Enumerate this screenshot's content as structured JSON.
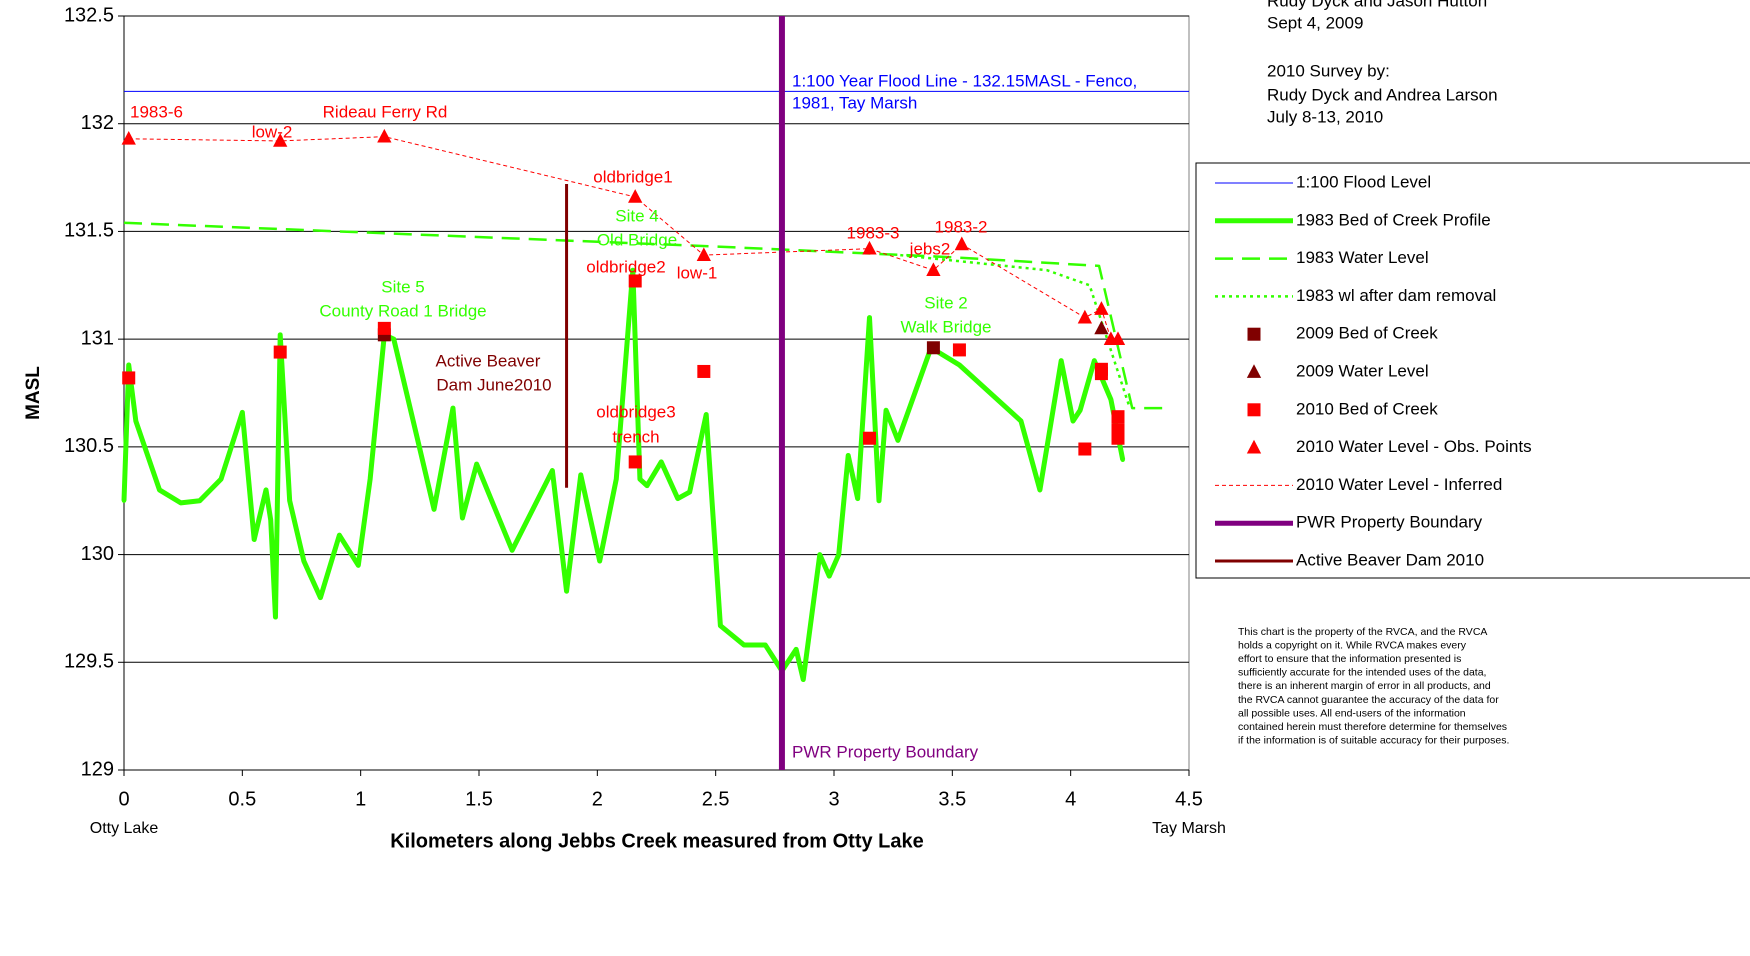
{
  "chart_data": {
    "type": "line",
    "xlabel": "Kilometers along Jebbs Creek measured from Otty Lake",
    "ylabel": "MASL",
    "xlim": [
      0,
      4.5
    ],
    "ylim": [
      129,
      132.5
    ],
    "xticks": [
      0,
      0.5,
      1,
      1.5,
      2,
      2.5,
      3,
      3.5,
      4,
      4.5
    ],
    "yticks": [
      129,
      129.5,
      130,
      130.5,
      131,
      131.5,
      132,
      132.5
    ],
    "grid": true,
    "x_end_labels": [
      "Otty Lake",
      "Tay Marsh"
    ],
    "series": [
      {
        "name": "1:100 Flood Level",
        "color": "#0000ff",
        "style": "line",
        "width": 1,
        "dash": "",
        "marker": "",
        "x": [
          0,
          4.5
        ],
        "values": [
          132.15,
          132.15
        ]
      },
      {
        "name": "1983 Bed of Creek Profile",
        "color": "#33ff00",
        "style": "line",
        "width": 5,
        "dash": "",
        "marker": "dot",
        "x": [
          0,
          0.02,
          0.05,
          0.15,
          0.24,
          0.32,
          0.41,
          0.5,
          0.55,
          0.6,
          0.62,
          0.64,
          0.66,
          0.7,
          0.76,
          0.83,
          0.91,
          0.99,
          1.04,
          1.1,
          1.14,
          1.25,
          1.31,
          1.39,
          1.43,
          1.49,
          1.64,
          1.81,
          1.87,
          1.93,
          2.01,
          2.08,
          2.15,
          2.18,
          2.21,
          2.27,
          2.34,
          2.39,
          2.46,
          2.52,
          2.62,
          2.71,
          2.78,
          2.84,
          2.87,
          2.94,
          2.98,
          3.02,
          3.06,
          3.1,
          3.15,
          3.19,
          3.22,
          3.27,
          3.41,
          3.53,
          3.79,
          3.87,
          3.96,
          4.01,
          4.04,
          4.1,
          4.17,
          4.22
        ],
        "values": [
          130.25,
          130.88,
          130.62,
          130.3,
          130.24,
          130.25,
          130.35,
          130.66,
          130.07,
          130.3,
          130.16,
          129.71,
          131.02,
          130.25,
          129.97,
          129.8,
          130.09,
          129.95,
          130.35,
          131.02,
          131.0,
          130.49,
          130.21,
          130.68,
          130.17,
          130.42,
          130.02,
          130.39,
          129.83,
          130.37,
          129.97,
          130.35,
          131.32,
          130.35,
          130.32,
          130.43,
          130.26,
          130.29,
          130.65,
          129.67,
          129.58,
          129.58,
          129.46,
          129.56,
          129.42,
          130.0,
          129.9,
          130.0,
          130.46,
          130.26,
          131.1,
          130.25,
          130.67,
          130.53,
          130.96,
          130.88,
          130.62,
          130.3,
          130.9,
          130.62,
          130.67,
          130.9,
          130.72,
          130.44
        ]
      },
      {
        "name": "1983 Water Level",
        "color": "#33ff00",
        "style": "line",
        "width": 2.5,
        "dash": "18,9",
        "marker": "",
        "x": [
          0,
          2.5,
          3.5,
          4.12,
          4.26,
          4.41
        ],
        "values": [
          131.54,
          131.43,
          131.38,
          131.34,
          130.68,
          130.68
        ]
      },
      {
        "name": "1983 wl after dam removal",
        "color": "#33ff00",
        "style": "line",
        "width": 2.5,
        "dash": "3,4",
        "marker": "",
        "x": [
          3.28,
          3.9,
          4.08,
          4.25
        ],
        "values": [
          131.39,
          131.32,
          131.25,
          130.68
        ]
      },
      {
        "name": "2009 Bed of Creek",
        "color": "#800000",
        "style": "marker",
        "width": 0,
        "dash": "",
        "marker": "square",
        "x": [
          1.1,
          3.42
        ],
        "values": [
          131.02,
          130.96
        ]
      },
      {
        "name": "2009 Water Level",
        "color": "#800000",
        "style": "marker",
        "width": 0,
        "dash": "",
        "marker": "triangle",
        "x": [
          4.13
        ],
        "values": [
          131.05
        ]
      },
      {
        "name": "2010 Bed of Creek",
        "color": "#ff0000",
        "style": "marker",
        "width": 0,
        "dash": "",
        "marker": "square",
        "x": [
          0.02,
          0.66,
          1.1,
          2.16,
          2.16,
          2.45,
          3.15,
          3.53,
          4.06,
          4.13,
          4.13,
          4.2,
          4.2,
          4.2
        ],
        "values": [
          130.82,
          130.94,
          131.05,
          131.27,
          130.43,
          130.85,
          130.54,
          130.95,
          130.49,
          130.86,
          130.84,
          130.64,
          130.58,
          130.54
        ]
      },
      {
        "name": "2010 Water Level - Obs. Points",
        "color": "#ff0000",
        "style": "marker",
        "width": 0,
        "dash": "",
        "marker": "triangle",
        "x": [
          0.02,
          0.66,
          1.1,
          2.16,
          2.45,
          3.15,
          3.42,
          3.54,
          4.06,
          4.13,
          4.17,
          4.2
        ],
        "values": [
          131.93,
          131.92,
          131.94,
          131.66,
          131.39,
          131.42,
          131.32,
          131.44,
          131.1,
          131.14,
          131.0,
          131.0
        ]
      },
      {
        "name": "2010 Water Level - Inferred",
        "color": "#ff0000",
        "style": "line",
        "width": 1,
        "dash": "4,3",
        "marker": "",
        "x": [
          0.02,
          0.66,
          1.1,
          2.16,
          2.45,
          3.15,
          3.42,
          3.54,
          4.06,
          4.13,
          4.17,
          4.2
        ],
        "values": [
          131.93,
          131.92,
          131.94,
          131.66,
          131.39,
          131.42,
          131.32,
          131.44,
          131.1,
          131.14,
          131.0,
          131.0
        ]
      },
      {
        "name": "PWR Property Boundary",
        "color": "#800080",
        "style": "line",
        "width": 6,
        "dash": "",
        "marker": "",
        "x": [
          2.78,
          2.78
        ],
        "values": [
          129,
          132.5
        ]
      },
      {
        "name": "Active Beaver Dam 2010",
        "color": "#800000",
        "style": "line",
        "width": 3,
        "dash": "",
        "marker": "",
        "x": [
          1.87,
          1.87
        ],
        "values": [
          130.31,
          131.72
        ]
      }
    ],
    "annotations": [
      {
        "text": "1983-6",
        "color": "#ff0000"
      },
      {
        "text": "low-2",
        "color": "#ff0000"
      },
      {
        "text": "Rideau Ferry Rd",
        "color": "#ff0000"
      },
      {
        "text": "oldbridge1",
        "color": "#ff0000"
      },
      {
        "text": "Site 4",
        "color": "#33ff00"
      },
      {
        "text": "Old Bridge",
        "color": "#33ff00"
      },
      {
        "text": "oldbridge2",
        "color": "#ff0000"
      },
      {
        "text": "low-1",
        "color": "#ff0000"
      },
      {
        "text": "Site 5",
        "color": "#33ff00"
      },
      {
        "text": "County Road 1 Bridge",
        "color": "#33ff00"
      },
      {
        "text": "Active Beaver",
        "color": "#800000"
      },
      {
        "text": "Dam June2010",
        "color": "#800000"
      },
      {
        "text": "oldbridge3",
        "color": "#ff0000"
      },
      {
        "text": "trench",
        "color": "#ff0000"
      },
      {
        "text": "1983-3",
        "color": "#ff0000"
      },
      {
        "text": "1983-2",
        "color": "#ff0000"
      },
      {
        "text": "jebs2",
        "color": "#ff0000"
      },
      {
        "text": "Site 2",
        "color": "#33ff00"
      },
      {
        "text": "Walk Bridge",
        "color": "#33ff00"
      },
      {
        "text": "1:100 Year Flood Line - 132.15MASL - Fenco,",
        "color": "#0000ff"
      },
      {
        "text": "1981, Tay Marsh",
        "color": "#0000ff"
      },
      {
        "text": "PWR Property Boundary",
        "color": "#800080"
      }
    ],
    "notes": [
      "Rudy Dyck and Jason Hutton",
      "Sept 4, 2009",
      "2010 Survey by:",
      "Rudy Dyck and Andrea Larson",
      "July 8-13, 2010"
    ],
    "disclaimer": [
      "This chart is the property of the RVCA, and the RVCA",
      "holds a copyright on it. While RVCA makes every",
      "effort to ensure that the information  presented is",
      "sufficiently accurate for the intended uses of the data,",
      "there is an inherent margin of error in all products, and",
      "the RVCA cannot guarantee the accuracy of the data for",
      "all possible uses.  All end-users of the information",
      "contained herein must therefore determine for themselves",
      "if the information is of suitable accuracy for their purposes."
    ]
  }
}
